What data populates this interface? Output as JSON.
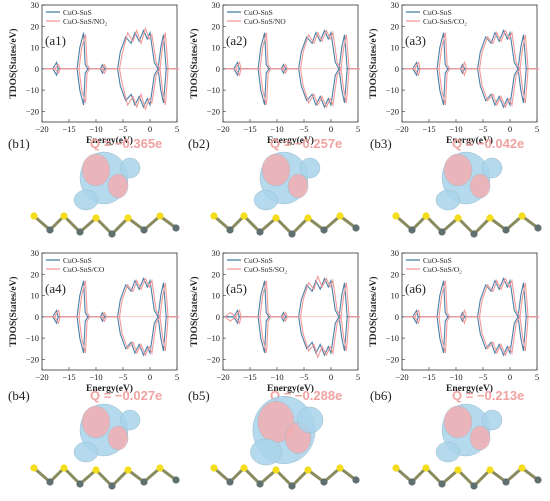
{
  "colors": {
    "ref_line": "#4a7fa6",
    "ads_line": "#f29a9a",
    "q_text": "#f0a3a0",
    "S_atom": "#f5dc1c",
    "Sn_atom": "#607070",
    "iso_blue": "#a9d3ea",
    "iso_pink": "#f3aeb0"
  },
  "figure": {
    "energy_label": "Energy(eV)",
    "tdos_label": "TDOS(States/eV)",
    "x_ticks": [
      "−20",
      "−15",
      "−10",
      "−5",
      "0",
      "5"
    ],
    "y_ticks": [
      "−20",
      "−10",
      "0",
      "10",
      "20",
      "30"
    ]
  },
  "panels": [
    {
      "tag": "(a1)",
      "legend": [
        "CuO-SnS",
        "CuO-SnS/NO₂"
      ]
    },
    {
      "tag": "(a2)",
      "legend": [
        "CuO-SnS",
        "CuO-SnS/NO"
      ]
    },
    {
      "tag": "(a3)",
      "legend": [
        "CuO-SnS",
        "CuO-SnS/CO₂"
      ]
    },
    {
      "tag": "(a4)",
      "legend": [
        "CuO-SnS",
        "CuO-SnS/CO"
      ]
    },
    {
      "tag": "(a5)",
      "legend": [
        "CuO-SnS",
        "CuO-SnS/SO₂"
      ]
    },
    {
      "tag": "(a6)",
      "legend": [
        "CuO-SnS",
        "CuO-SnS/O₂"
      ]
    }
  ],
  "charge_panels": [
    {
      "tag": "(b1)",
      "q": "Q = −0.365e"
    },
    {
      "tag": "(b2)",
      "q": "Q = −0.257e"
    },
    {
      "tag": "(b3)",
      "q": "Q = −0.042e"
    },
    {
      "tag": "(b4)",
      "q": "Q = −0.027e"
    },
    {
      "tag": "(b5)",
      "q": "Q = −0.288e"
    },
    {
      "tag": "(b6)",
      "q": "Q = −0.213e"
    }
  ],
  "chart_data": [
    {
      "type": "line",
      "xlabel": "Energy(eV)",
      "ylabel": "TDOS(States/eV)",
      "xlim": [
        -20,
        5
      ],
      "ylim": [
        -25,
        30
      ],
      "series": [
        {
          "name": "CuO-SnS",
          "x": [
            -20,
            -18,
            -17.3,
            -17,
            -16.5,
            -15,
            -13.5,
            -13,
            -12.3,
            -12,
            -11.5,
            -10,
            -9.2,
            -8.8,
            -8.4,
            -8,
            -6,
            -5.5,
            -4.5,
            -3.5,
            -2.8,
            -2,
            -1.2,
            -0.5,
            0,
            0.8,
            1.5,
            2,
            2.5,
            3,
            5
          ],
          "y": [
            0,
            0,
            3,
            0,
            0,
            0,
            0,
            10,
            17,
            2,
            0,
            0,
            0,
            2,
            0,
            0,
            0,
            8,
            15,
            12,
            17,
            13,
            18,
            14,
            17,
            3,
            0,
            10,
            16,
            0,
            0
          ]
        },
        {
          "name": "CuO-SnS/NO₂",
          "x": [
            -20,
            -18,
            -17.3,
            -17,
            -16.5,
            -15,
            -13.5,
            -13,
            -12.3,
            -12,
            -11.5,
            -10,
            -9.2,
            -8.8,
            -8.4,
            -8,
            -6,
            -5.5,
            -4.5,
            -3.5,
            -2.8,
            -2,
            -1.2,
            -0.5,
            0,
            0.8,
            1.5,
            2,
            2.5,
            3,
            5
          ],
          "y": [
            0,
            0,
            2,
            0,
            0,
            0,
            0,
            10,
            16,
            2,
            0,
            0,
            0,
            2,
            0,
            0,
            0,
            7,
            17,
            13,
            18,
            12,
            19,
            14,
            16,
            3,
            0,
            11,
            17,
            0,
            0
          ]
        }
      ]
    },
    {
      "type": "line",
      "xlabel": "Energy(eV)",
      "ylabel": "TDOS(States/eV)",
      "xlim": [
        -20,
        5
      ],
      "ylim": [
        -25,
        30
      ],
      "series": [
        {
          "name": "CuO-SnS",
          "x": [
            -20,
            -18,
            -17.3,
            -17,
            -16.5,
            -15,
            -13.5,
            -13,
            -12.3,
            -12,
            -11.5,
            -10,
            -9.2,
            -8.8,
            -8.4,
            -8,
            -6,
            -5.5,
            -4.5,
            -3.5,
            -2.8,
            -2,
            -1.2,
            -0.5,
            0,
            0.8,
            1.5,
            2,
            2.5,
            3,
            5
          ],
          "y": [
            0,
            0,
            3,
            0,
            0,
            0,
            0,
            10,
            17,
            2,
            0,
            0,
            0,
            2,
            0,
            0,
            0,
            8,
            15,
            12,
            17,
            13,
            18,
            14,
            17,
            3,
            0,
            10,
            16,
            0,
            0
          ]
        },
        {
          "name": "CuO-SnS/NO",
          "x": [
            -20,
            -18,
            -17.3,
            -17,
            -16.5,
            -15,
            -13.5,
            -13,
            -12.3,
            -12,
            -11.5,
            -10,
            -9.2,
            -8.8,
            -8.4,
            -8,
            -6,
            -5.5,
            -4.5,
            -3.5,
            -2.8,
            -2,
            -1.2,
            -0.5,
            0,
            0.8,
            1.5,
            2,
            2.5,
            3,
            5
          ],
          "y": [
            0,
            0,
            3,
            0,
            0,
            0,
            0,
            10,
            17,
            2,
            0,
            0,
            0,
            2,
            0,
            0,
            0,
            8,
            16,
            12,
            17,
            13,
            18,
            14,
            17,
            3,
            0,
            10,
            16,
            0,
            0
          ]
        }
      ]
    },
    {
      "type": "line",
      "xlabel": "Energy(eV)",
      "ylabel": "TDOS(States/eV)",
      "xlim": [
        -20,
        5
      ],
      "ylim": [
        -25,
        30
      ],
      "series": [
        {
          "name": "CuO-SnS",
          "x": [
            -20,
            -18,
            -17.3,
            -17,
            -16.5,
            -15,
            -13.5,
            -13,
            -12.3,
            -12,
            -11.5,
            -10,
            -9.2,
            -8.8,
            -8.4,
            -8,
            -6,
            -5.5,
            -4.5,
            -3.5,
            -2.8,
            -2,
            -1.2,
            -0.5,
            0,
            0.8,
            1.5,
            2,
            2.5,
            3,
            5
          ],
          "y": [
            0,
            0,
            3,
            0,
            0,
            0,
            0,
            10,
            17,
            2,
            0,
            0,
            0,
            2,
            0,
            0,
            0,
            8,
            15,
            12,
            17,
            13,
            18,
            14,
            17,
            3,
            0,
            10,
            16,
            0,
            0
          ]
        },
        {
          "name": "CuO-SnS/CO₂",
          "x": [
            -20,
            -18,
            -17.3,
            -17,
            -16.5,
            -15,
            -13.5,
            -13,
            -12.3,
            -12,
            -11.5,
            -10,
            -9.2,
            -8.8,
            -8.4,
            -8,
            -6,
            -5.5,
            -4.5,
            -3.5,
            -2.8,
            -2,
            -1.2,
            -0.5,
            0,
            0.8,
            1.5,
            2,
            2.5,
            3,
            5
          ],
          "y": [
            0,
            0,
            3,
            0,
            0,
            0,
            0,
            10,
            17,
            2,
            0,
            0,
            0,
            3,
            0,
            0,
            0,
            8,
            15,
            12,
            17,
            13,
            18,
            14,
            17,
            3,
            0,
            10,
            16,
            0,
            0
          ]
        }
      ]
    },
    {
      "type": "line",
      "xlabel": "Energy(eV)",
      "ylabel": "TDOS(States/eV)",
      "xlim": [
        -20,
        5
      ],
      "ylim": [
        -25,
        30
      ],
      "series": [
        {
          "name": "CuO-SnS",
          "x": [
            -20,
            -18,
            -17.3,
            -17,
            -16.5,
            -15,
            -13.5,
            -13,
            -12.3,
            -12,
            -11.5,
            -10,
            -9.2,
            -8.8,
            -8.4,
            -8,
            -6,
            -5.5,
            -4.5,
            -3.5,
            -2.8,
            -2,
            -1.2,
            -0.5,
            0,
            0.8,
            1.5,
            2,
            2.5,
            3,
            5
          ],
          "y": [
            0,
            0,
            3,
            0,
            0,
            0,
            0,
            10,
            17,
            2,
            0,
            0,
            0,
            2,
            0,
            0,
            0,
            8,
            15,
            12,
            17,
            13,
            18,
            14,
            17,
            3,
            0,
            10,
            16,
            0,
            0
          ]
        },
        {
          "name": "CuO-SnS/CO",
          "x": [
            -20,
            -18,
            -17.3,
            -17,
            -16.5,
            -15,
            -13.5,
            -13,
            -12.3,
            -12,
            -11.5,
            -10,
            -9.2,
            -8.8,
            -8.4,
            -8,
            -6,
            -5.5,
            -4.5,
            -3.5,
            -2.8,
            -2,
            -1.2,
            -0.5,
            0,
            0.8,
            1.5,
            2,
            2.5,
            3,
            5
          ],
          "y": [
            0,
            0,
            3,
            0,
            0,
            0,
            0,
            10,
            17,
            2,
            0,
            0,
            0,
            2,
            0,
            0,
            0,
            8,
            15,
            12,
            17,
            13,
            18,
            14,
            17,
            3,
            0,
            10,
            16,
            0,
            0
          ]
        }
      ]
    },
    {
      "type": "line",
      "xlabel": "Energy(eV)",
      "ylabel": "TDOS(States/eV)",
      "xlim": [
        -20,
        5
      ],
      "ylim": [
        -25,
        30
      ],
      "series": [
        {
          "name": "CuO-SnS",
          "x": [
            -20,
            -18,
            -17.3,
            -17,
            -16.5,
            -15,
            -13.5,
            -13,
            -12.3,
            -12,
            -11.5,
            -10,
            -9.2,
            -8.8,
            -8.4,
            -8,
            -6,
            -5.5,
            -4.5,
            -3.5,
            -2.8,
            -2,
            -1.2,
            -0.5,
            0,
            0.8,
            1.5,
            2,
            2.5,
            3,
            5
          ],
          "y": [
            0,
            0,
            3,
            0,
            0,
            0,
            0,
            10,
            17,
            2,
            0,
            0,
            0,
            2,
            0,
            0,
            0,
            8,
            15,
            12,
            17,
            13,
            18,
            14,
            17,
            3,
            0,
            10,
            16,
            0,
            0
          ]
        },
        {
          "name": "CuO-SnS/SO₂",
          "x": [
            -20,
            -19,
            -18,
            -17.3,
            -17,
            -16.5,
            -15,
            -13.5,
            -13,
            -12.3,
            -12,
            -11.5,
            -10,
            -9.2,
            -8.8,
            -8.4,
            -8,
            -6,
            -5.5,
            -4.5,
            -3.5,
            -2.8,
            -2,
            -1.2,
            -0.5,
            0,
            0.8,
            1.5,
            2,
            2.5,
            3,
            5
          ],
          "y": [
            0,
            2,
            0,
            3,
            0,
            0,
            0,
            0,
            10,
            17,
            2,
            0,
            0,
            0,
            2,
            0,
            0,
            0,
            8,
            16,
            13,
            19,
            14,
            18,
            14,
            17,
            3,
            0,
            10,
            16,
            0,
            0
          ]
        }
      ]
    },
    {
      "type": "line",
      "xlabel": "Energy(eV)",
      "ylabel": "TDOS(States/eV)",
      "xlim": [
        -20,
        5
      ],
      "ylim": [
        -25,
        30
      ],
      "series": [
        {
          "name": "CuO-SnS",
          "x": [
            -20,
            -18,
            -17.3,
            -17,
            -16.5,
            -15,
            -13.5,
            -13,
            -12.3,
            -12,
            -11.5,
            -10,
            -9.2,
            -8.8,
            -8.4,
            -8,
            -6,
            -5.5,
            -4.5,
            -3.5,
            -2.8,
            -2,
            -1.2,
            -0.5,
            0,
            0.8,
            1.5,
            2,
            2.5,
            3,
            5
          ],
          "y": [
            0,
            0,
            3,
            0,
            0,
            0,
            0,
            10,
            17,
            2,
            0,
            0,
            0,
            2,
            0,
            0,
            0,
            8,
            15,
            12,
            17,
            13,
            18,
            14,
            17,
            3,
            0,
            10,
            16,
            0,
            0
          ]
        },
        {
          "name": "CuO-SnS/O₂",
          "x": [
            -20,
            -18,
            -17.3,
            -17,
            -16.5,
            -15,
            -13.5,
            -13,
            -12.3,
            -12,
            -11.5,
            -10,
            -9.2,
            -8.8,
            -8.4,
            -8,
            -6,
            -5.5,
            -4.5,
            -3.5,
            -2.8,
            -2,
            -1.2,
            -0.5,
            0,
            0.8,
            1.5,
            2,
            2.5,
            3,
            5
          ],
          "y": [
            0,
            0,
            3,
            0,
            0,
            0,
            0,
            10,
            17,
            2,
            0,
            0,
            0,
            3,
            0,
            0,
            0,
            8,
            15,
            12,
            17,
            13,
            18,
            14,
            17,
            3,
            0,
            10,
            16,
            0,
            0
          ]
        }
      ]
    }
  ]
}
